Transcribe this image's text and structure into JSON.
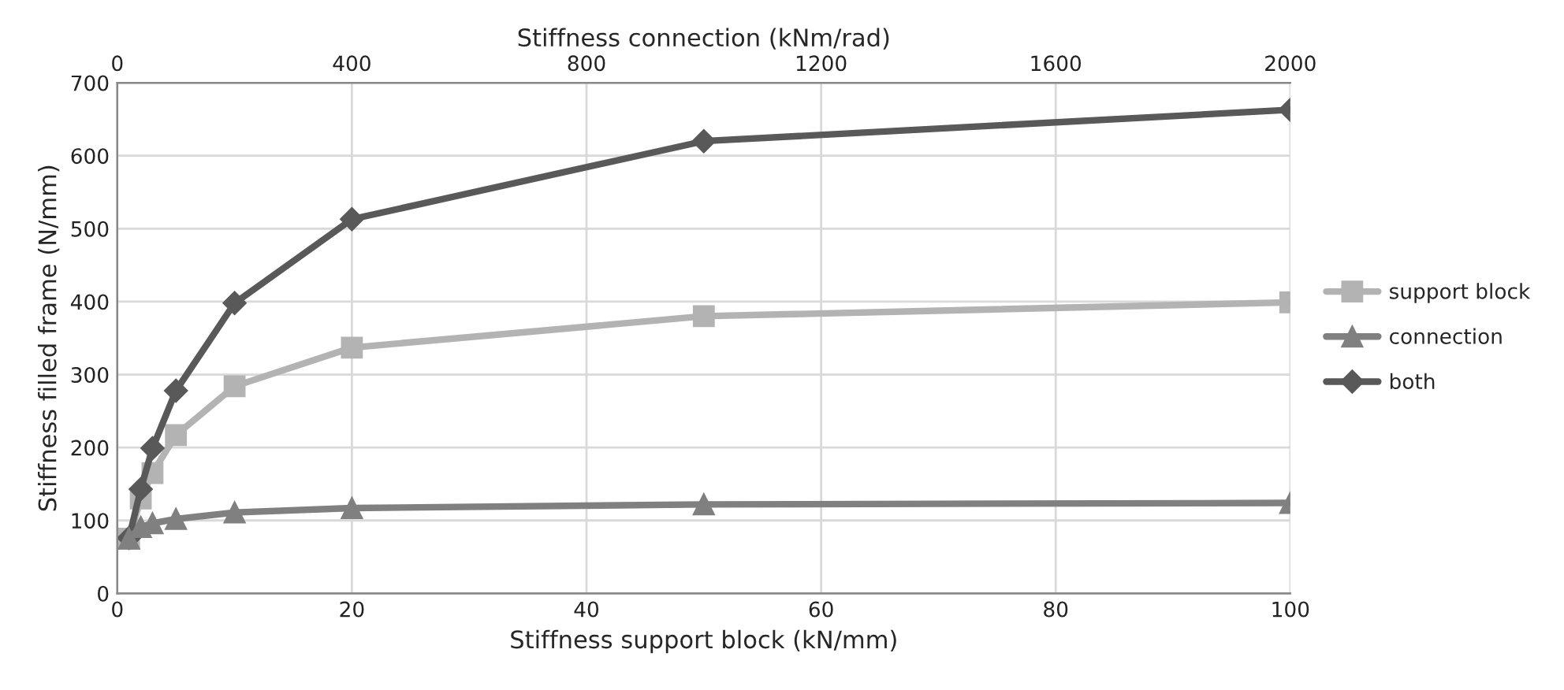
{
  "chart_data": {
    "type": "line",
    "xlabel": "Stiffness support block (kN/mm)",
    "ylabel": "Stiffness filled frame (N/mm)",
    "x2label": "Stiffness connection (kNm/rad)",
    "x": [
      1,
      2,
      3,
      5,
      10,
      20,
      50,
      100
    ],
    "series": [
      {
        "name": "support block",
        "color": "#b3b3b3",
        "marker": "square",
        "values": [
          75,
          130,
          165,
          217,
          284,
          337,
          380,
          399
        ]
      },
      {
        "name": "connection",
        "color": "#808080",
        "marker": "triangle",
        "axis": "x2",
        "x": [
          20,
          40,
          60,
          100,
          200,
          400,
          1000,
          2000
        ],
        "values": [
          75,
          91,
          96,
          102,
          111,
          117,
          122,
          124
        ]
      },
      {
        "name": "both",
        "color": "#595959",
        "marker": "diamond",
        "values": [
          76,
          143,
          199,
          278,
          398,
          513,
          620,
          663
        ]
      }
    ],
    "xlim": [
      0,
      100
    ],
    "xticks": [
      0,
      20,
      40,
      60,
      80,
      100
    ],
    "x2lim": [
      0,
      2000
    ],
    "x2ticks": [
      0,
      400,
      800,
      1200,
      1600,
      2000
    ],
    "ylim": [
      0,
      700
    ],
    "yticks": [
      0,
      100,
      200,
      300,
      400,
      500,
      600,
      700
    ],
    "grid": true,
    "legend": "right",
    "line_style": "solid"
  }
}
